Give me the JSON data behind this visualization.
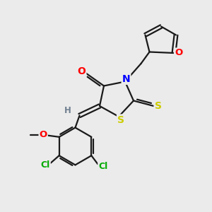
{
  "background_color": "#ebebeb",
  "bond_color": "#1a1a1a",
  "atom_colors": {
    "O": "#ff0000",
    "N": "#0000ff",
    "S": "#cccc00",
    "Cl": "#00aa00",
    "C": "#1a1a1a",
    "H": "#708090"
  },
  "figsize": [
    3.0,
    3.0
  ],
  "dpi": 100
}
